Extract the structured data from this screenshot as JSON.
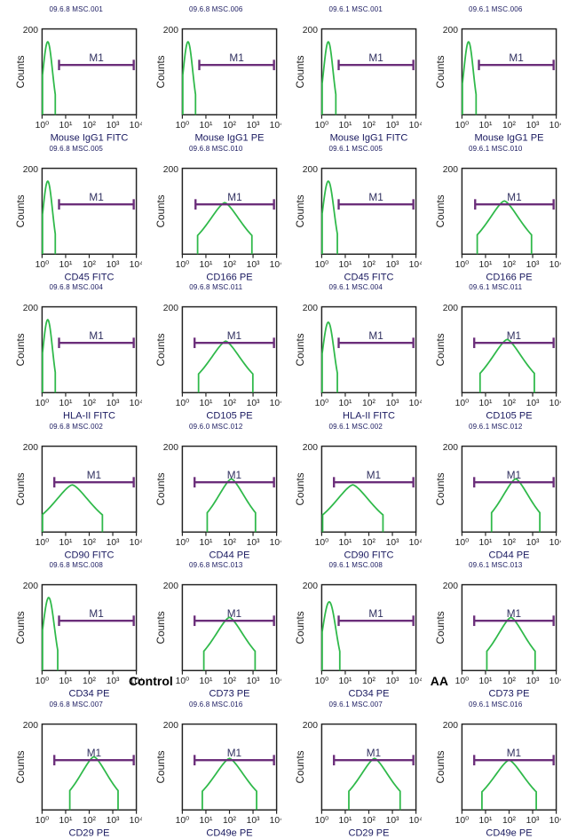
{
  "figure": {
    "background_color": "#ffffff",
    "plot_border_color": "#222222",
    "histogram_stroke": "#2fb94a",
    "histogram_stroke_width": 1.2,
    "gate_bar_color": "#6b2e7a",
    "gate_bar_width": 1.6,
    "gate_label": "M1",
    "y_axis_label": "Counts",
    "y_max_label": "200",
    "x_ticks": [
      "10⁰",
      "10¹",
      "10²",
      "10³",
      "10⁴"
    ],
    "block_labels": [
      "Control",
      "AA"
    ],
    "cells": [
      [
        {
          "title": "09.6.8 MSC.001",
          "xlabel": "Mouse IgG1 FITC",
          "shape": "narrow",
          "peak_x": 0.06,
          "peak_h": 0.85,
          "width": 0.05,
          "gate_from": 0.18
        },
        {
          "title": "09.6.8 MSC.006",
          "xlabel": "Mouse IgG1 PE",
          "shape": "narrow",
          "peak_x": 0.06,
          "peak_h": 0.85,
          "width": 0.05,
          "gate_from": 0.18
        },
        {
          "title": "09.6.1 MSC.001",
          "xlabel": "Mouse IgG1 FITC",
          "shape": "narrow",
          "peak_x": 0.07,
          "peak_h": 0.85,
          "width": 0.05,
          "gate_from": 0.18
        },
        {
          "title": "09.6.1 MSC.006",
          "xlabel": "Mouse IgG1 PE",
          "shape": "narrow",
          "peak_x": 0.07,
          "peak_h": 0.85,
          "width": 0.05,
          "gate_from": 0.18
        }
      ],
      [
        {
          "title": "09.6.8 MSC.005",
          "xlabel": "CD45 FITC",
          "shape": "narrow",
          "peak_x": 0.06,
          "peak_h": 0.85,
          "width": 0.05,
          "gate_from": 0.18
        },
        {
          "title": "09.6.8 MSC.010",
          "xlabel": "CD166 PE",
          "shape": "broad",
          "peak_x": 0.45,
          "peak_h": 0.6,
          "width": 0.18,
          "gate_from": 0.14
        },
        {
          "title": "09.6.1 MSC.005",
          "xlabel": "CD45 FITC",
          "shape": "narrow",
          "peak_x": 0.07,
          "peak_h": 0.85,
          "width": 0.06,
          "gate_from": 0.18
        },
        {
          "title": "09.6.1 MSC.010",
          "xlabel": "CD166 PE",
          "shape": "broad",
          "peak_x": 0.45,
          "peak_h": 0.62,
          "width": 0.18,
          "gate_from": 0.14
        }
      ],
      [
        {
          "title": "09.6.8 MSC.004",
          "xlabel": "HLA-II FITC",
          "shape": "narrow",
          "peak_x": 0.06,
          "peak_h": 0.85,
          "width": 0.05,
          "gate_from": 0.18
        },
        {
          "title": "09.6.8 MSC.011",
          "xlabel": "CD105 PE",
          "shape": "broad",
          "peak_x": 0.46,
          "peak_h": 0.6,
          "width": 0.18,
          "gate_from": 0.13
        },
        {
          "title": "09.6.1 MSC.004",
          "xlabel": "HLA-II FITC",
          "shape": "narrow",
          "peak_x": 0.07,
          "peak_h": 0.82,
          "width": 0.06,
          "gate_from": 0.18
        },
        {
          "title": "09.6.1 MSC.011",
          "xlabel": "CD105 PE",
          "shape": "broad",
          "peak_x": 0.48,
          "peak_h": 0.62,
          "width": 0.18,
          "gate_from": 0.13
        }
      ],
      [
        {
          "title": "09.6.8 MSC.002",
          "xlabel": "CD90 FITC",
          "shape": "broad",
          "peak_x": 0.32,
          "peak_h": 0.55,
          "width": 0.2,
          "gate_from": 0.13
        },
        {
          "title": "09.6.0 MSC.012",
          "xlabel": "CD44 PE",
          "shape": "broad",
          "peak_x": 0.52,
          "peak_h": 0.62,
          "width": 0.16,
          "gate_from": 0.13
        },
        {
          "title": "09.6.1 MSC.002",
          "xlabel": "CD90 FITC",
          "shape": "broad",
          "peak_x": 0.33,
          "peak_h": 0.55,
          "width": 0.2,
          "gate_from": 0.13
        },
        {
          "title": "09.6.1 MSC.012",
          "xlabel": "CD44 PE",
          "shape": "broad",
          "peak_x": 0.57,
          "peak_h": 0.62,
          "width": 0.16,
          "gate_from": 0.13
        }
      ],
      [
        {
          "title": "09.6.8 MSC.008",
          "xlabel": "CD34 PE",
          "shape": "narrow",
          "peak_x": 0.07,
          "peak_h": 0.85,
          "width": 0.06,
          "gate_from": 0.18
        },
        {
          "title": "09.6.8 MSC.013",
          "xlabel": "CD73 PE",
          "shape": "broad",
          "peak_x": 0.5,
          "peak_h": 0.62,
          "width": 0.17,
          "gate_from": 0.13
        },
        {
          "title": "09.6.1 MSC.008",
          "xlabel": "CD34 PE",
          "shape": "narrow",
          "peak_x": 0.08,
          "peak_h": 0.8,
          "width": 0.07,
          "gate_from": 0.18
        },
        {
          "title": "09.6.1 MSC.013",
          "xlabel": "CD73 PE",
          "shape": "broad",
          "peak_x": 0.52,
          "peak_h": 0.62,
          "width": 0.16,
          "gate_from": 0.13
        }
      ],
      [
        {
          "title": "09.6.8 MSC.007",
          "xlabel": "CD29 PE",
          "shape": "broad",
          "peak_x": 0.55,
          "peak_h": 0.62,
          "width": 0.16,
          "gate_from": 0.13
        },
        {
          "title": "09.6.8 MSC.016",
          "xlabel": "CD49e PE",
          "shape": "broad",
          "peak_x": 0.5,
          "peak_h": 0.6,
          "width": 0.18,
          "gate_from": 0.13
        },
        {
          "title": "09.6.1 MSC.007",
          "xlabel": "CD29 PE",
          "shape": "broad",
          "peak_x": 0.56,
          "peak_h": 0.6,
          "width": 0.17,
          "gate_from": 0.13
        },
        {
          "title": "09.6.1 MSC.016",
          "xlabel": "CD49e PE",
          "shape": "broad",
          "peak_x": 0.5,
          "peak_h": 0.58,
          "width": 0.18,
          "gate_from": 0.13
        }
      ]
    ]
  }
}
